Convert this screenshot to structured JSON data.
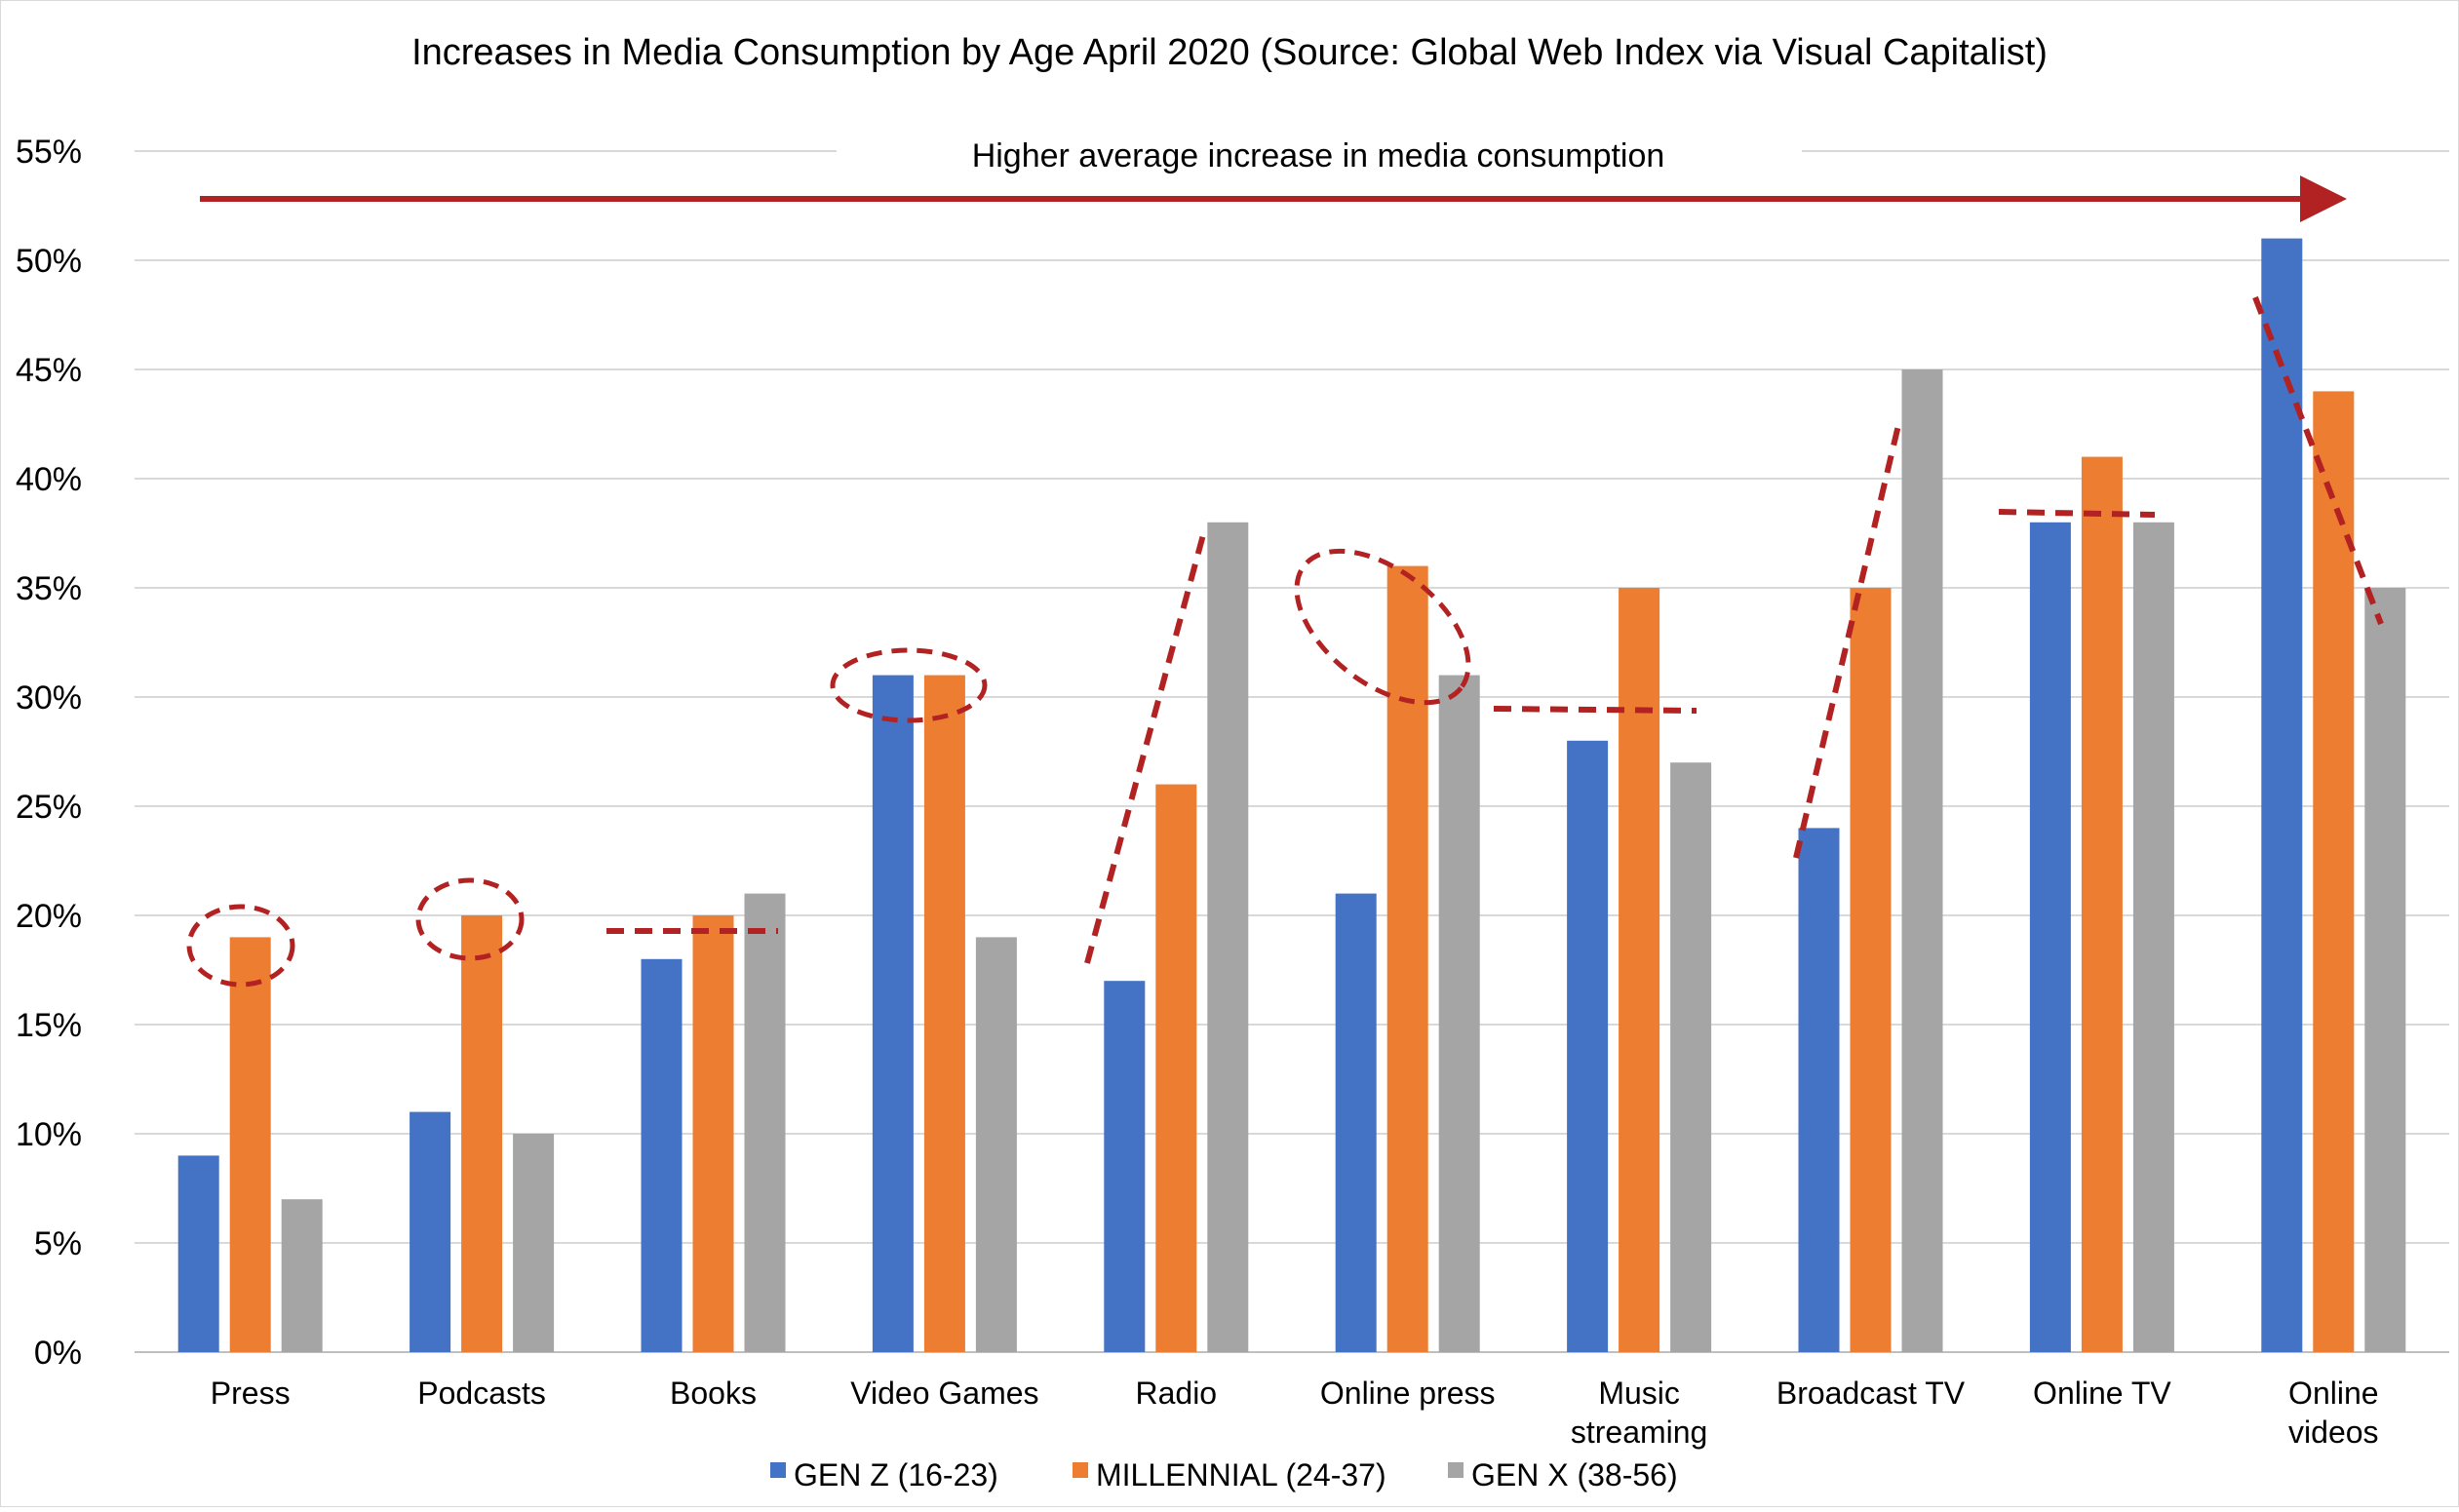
{
  "chart_data": {
    "type": "bar",
    "title": "Increases in Media Consumption by Age April 2020 (Source: Global Web Index via Visual Capitalist)",
    "annotation": "Higher average increase in media consumption",
    "categories": [
      "Press",
      "Podcasts",
      "Books",
      "Video Games",
      "Radio",
      "Online press",
      "Music streaming",
      "Broadcast TV",
      "Online TV",
      "Online videos"
    ],
    "series": [
      {
        "name": "GEN Z (16-23)",
        "color": "#4472C4",
        "values": [
          9,
          11,
          18,
          31,
          17,
          21,
          28,
          24,
          38,
          51
        ]
      },
      {
        "name": "MILLENNIAL (24-37)",
        "color": "#ED7D31",
        "values": [
          19,
          20,
          20,
          31,
          26,
          36,
          35,
          35,
          41,
          44
        ]
      },
      {
        "name": "GEN X (38-56)",
        "color": "#A5A5A5",
        "values": [
          7,
          10,
          21,
          19,
          38,
          31,
          27,
          45,
          38,
          35
        ]
      }
    ],
    "ylim": [
      0,
      55
    ],
    "yticks": [
      "0%",
      "5%",
      "10%",
      "15%",
      "20%",
      "25%",
      "30%",
      "35%",
      "40%",
      "45%",
      "50%",
      "55%"
    ],
    "grid": true,
    "legend_position": "bottom",
    "annotation_color": "#B22222"
  }
}
